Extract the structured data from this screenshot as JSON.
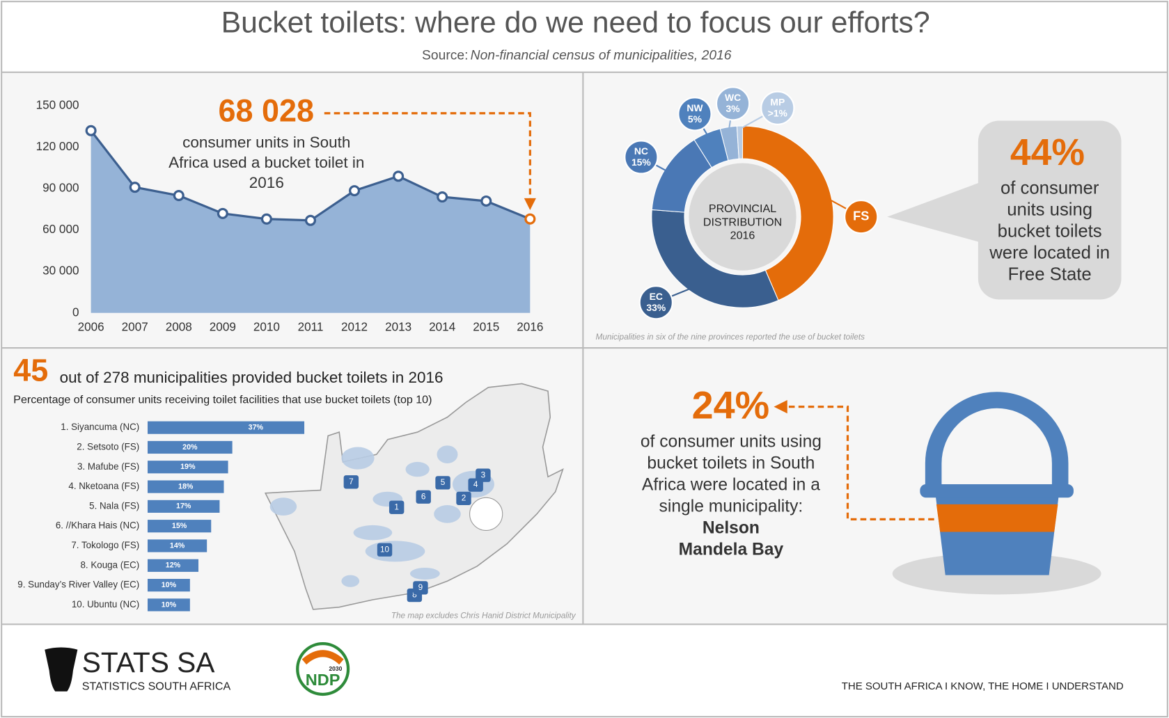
{
  "header": {
    "title": "Bucket toilets: where do we need to focus our efforts?",
    "source_label": "Source:",
    "source": "Non-financial census of municipalities, 2016"
  },
  "chart_data": [
    {
      "type": "area",
      "x": [
        2006,
        2007,
        2008,
        2009,
        2010,
        2011,
        2012,
        2013,
        2014,
        2015,
        2016
      ],
      "values": [
        132000,
        91000,
        85000,
        72000,
        68000,
        67000,
        88500,
        99000,
        84000,
        81000,
        68028
      ],
      "value_labels": [
        null,
        null,
        null,
        null,
        null,
        null,
        null,
        null,
        null,
        null,
        "68 028"
      ],
      "annotation": "consumer units in South Africa used a bucket toilet in 2016",
      "xlim": [
        2006,
        2016
      ],
      "xticks": [
        2006,
        2007,
        2008,
        2009,
        2010,
        2011,
        2012,
        2013,
        2014,
        2015,
        2016
      ],
      "ylim": [
        0,
        150000
      ],
      "yticks": [
        {
          "value": 0,
          "label": "0"
        },
        {
          "value": 30000,
          "label": "30 000"
        },
        {
          "value": 60000,
          "label": "60 000"
        },
        {
          "value": 90000,
          "label": "90 000"
        },
        {
          "value": 120000,
          "label": "120 000"
        },
        {
          "value": 150000,
          "label": "150 000"
        }
      ],
      "color": "#95b3d7",
      "line_color": "#3c5f8f",
      "highlight_color": "#e46c0a",
      "grid": false
    },
    {
      "type": "donut",
      "title": "PROVINCIAL DISTRIBUTION 2016",
      "categories": [
        "FS",
        "EC",
        "NC",
        "NW",
        "WC",
        "MP"
      ],
      "values": [
        44,
        33,
        15,
        5,
        3,
        1
      ],
      "value_labels": [
        "44%",
        "33%",
        "15%",
        "5%",
        "3%",
        ">1%"
      ],
      "colors": [
        "#e46c0a",
        "#3a5f8f",
        "#4a78b5",
        "#4f81bd",
        "#95b3d7",
        "#b8cce4"
      ],
      "annotation": "of consumer units using bucket toilets were located in Free State",
      "note": "Municipalities in six of the nine provinces reported the use of bucket toilets"
    },
    {
      "type": "bar",
      "orientation": "horizontal",
      "title_highlight": "45",
      "title": "out of 278 municipalities provided bucket toilets in 2016",
      "subtitle": "Percentage of consumer units receiving toilet facilities that use bucket toilets (top 10)",
      "categories": [
        "1. Siyancuma (NC)",
        "2. Setsoto (FS)",
        "3. Mafube (FS)",
        "4. Nketoana (FS)",
        "5. Nala (FS)",
        "6. //Khara Hais (NC)",
        "7. Tokologo (FS)",
        "8. Kouga (EC)",
        "9. Sunday’s River Valley (EC)",
        "10. Ubuntu (NC)"
      ],
      "values": [
        37,
        20,
        19,
        18,
        17,
        15,
        14,
        12,
        10,
        10
      ],
      "value_labels": [
        "37%",
        "20%",
        "19%",
        "18%",
        "17%",
        "15%",
        "14%",
        "12%",
        "10%",
        "10%"
      ],
      "color": "#4f81bd",
      "map": {
        "markers": [
          "1",
          "2",
          "3",
          "4",
          "5",
          "6",
          "7",
          "8",
          "9",
          "10"
        ],
        "note": "The map excludes Chris Hanid District Municipality"
      }
    }
  ],
  "highlight": {
    "value": "24%",
    "text": "of consumer units using bucket toilets in South Africa were located in a single municipality:",
    "place": "Nelson Mandela Bay"
  },
  "footer": {
    "logo_name": "STATS SA",
    "logo_subtitle": "STATISTICS SOUTH AFRICA",
    "ndp": "NDP",
    "ndp_year": "2030",
    "tagline": "THE SOUTH AFRICA I KNOW, THE HOME I UNDERSTAND"
  }
}
